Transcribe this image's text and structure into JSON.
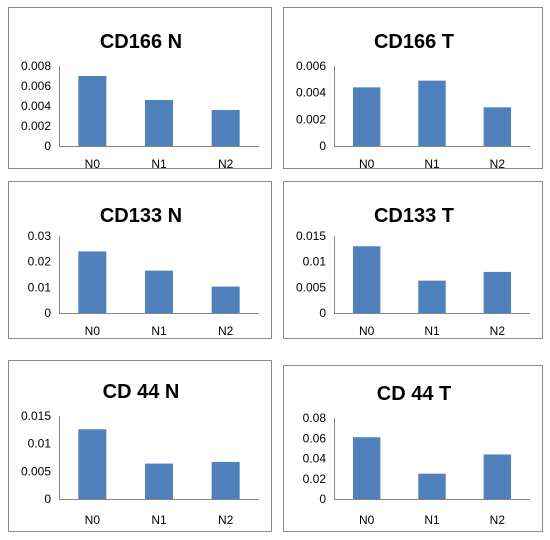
{
  "chart_data": [
    {
      "type": "bar",
      "title": "CD166 N",
      "categories": [
        "N0",
        "N1",
        "N2"
      ],
      "values": [
        0.007,
        0.0046,
        0.0036
      ],
      "ylim": [
        0,
        0.008
      ],
      "yticks": [
        "0",
        "0.002",
        "0.004",
        "0.006",
        "0.008"
      ],
      "grid": false,
      "legend": "none"
    },
    {
      "type": "bar",
      "title": "CD166 T",
      "categories": [
        "N0",
        "N1",
        "N2"
      ],
      "values": [
        0.0044,
        0.0049,
        0.0029
      ],
      "ylim": [
        0,
        0.006
      ],
      "yticks": [
        "0",
        "0.002",
        "0.004",
        "0.006"
      ],
      "grid": false,
      "legend": "none"
    },
    {
      "type": "bar",
      "title": "CD133 N",
      "categories": [
        "N0",
        "N1",
        "N2"
      ],
      "values": [
        0.024,
        0.0165,
        0.0103
      ],
      "ylim": [
        0,
        0.03
      ],
      "yticks": [
        "0",
        "0.01",
        "0.02",
        "0.03"
      ],
      "grid": false,
      "legend": "none"
    },
    {
      "type": "bar",
      "title": "CD133 T",
      "categories": [
        "N0",
        "N1",
        "N2"
      ],
      "values": [
        0.013,
        0.0063,
        0.008
      ],
      "ylim": [
        0,
        0.015
      ],
      "yticks": [
        "0",
        "0.005",
        "0.01",
        "0.015"
      ],
      "grid": false,
      "legend": "none"
    },
    {
      "type": "bar",
      "title": "CD 44 N",
      "categories": [
        "N0",
        "N1",
        "N2"
      ],
      "values": [
        0.0126,
        0.0064,
        0.0067
      ],
      "ylim": [
        0,
        0.015
      ],
      "yticks": [
        "0",
        "0.005",
        "0.01",
        "0.015"
      ],
      "grid": false,
      "legend": "none"
    },
    {
      "type": "bar",
      "title": "CD 44 T",
      "categories": [
        "N0",
        "N1",
        "N2"
      ],
      "values": [
        0.061,
        0.025,
        0.044
      ],
      "ylim": [
        0,
        0.08
      ],
      "yticks": [
        "0",
        "0.02",
        "0.04",
        "0.06",
        "0.08"
      ],
      "grid": false,
      "legend": "none"
    }
  ],
  "colors": {
    "bar": "#4f81bd",
    "axis": "#868686",
    "panel_border": "#8c8c8c"
  }
}
